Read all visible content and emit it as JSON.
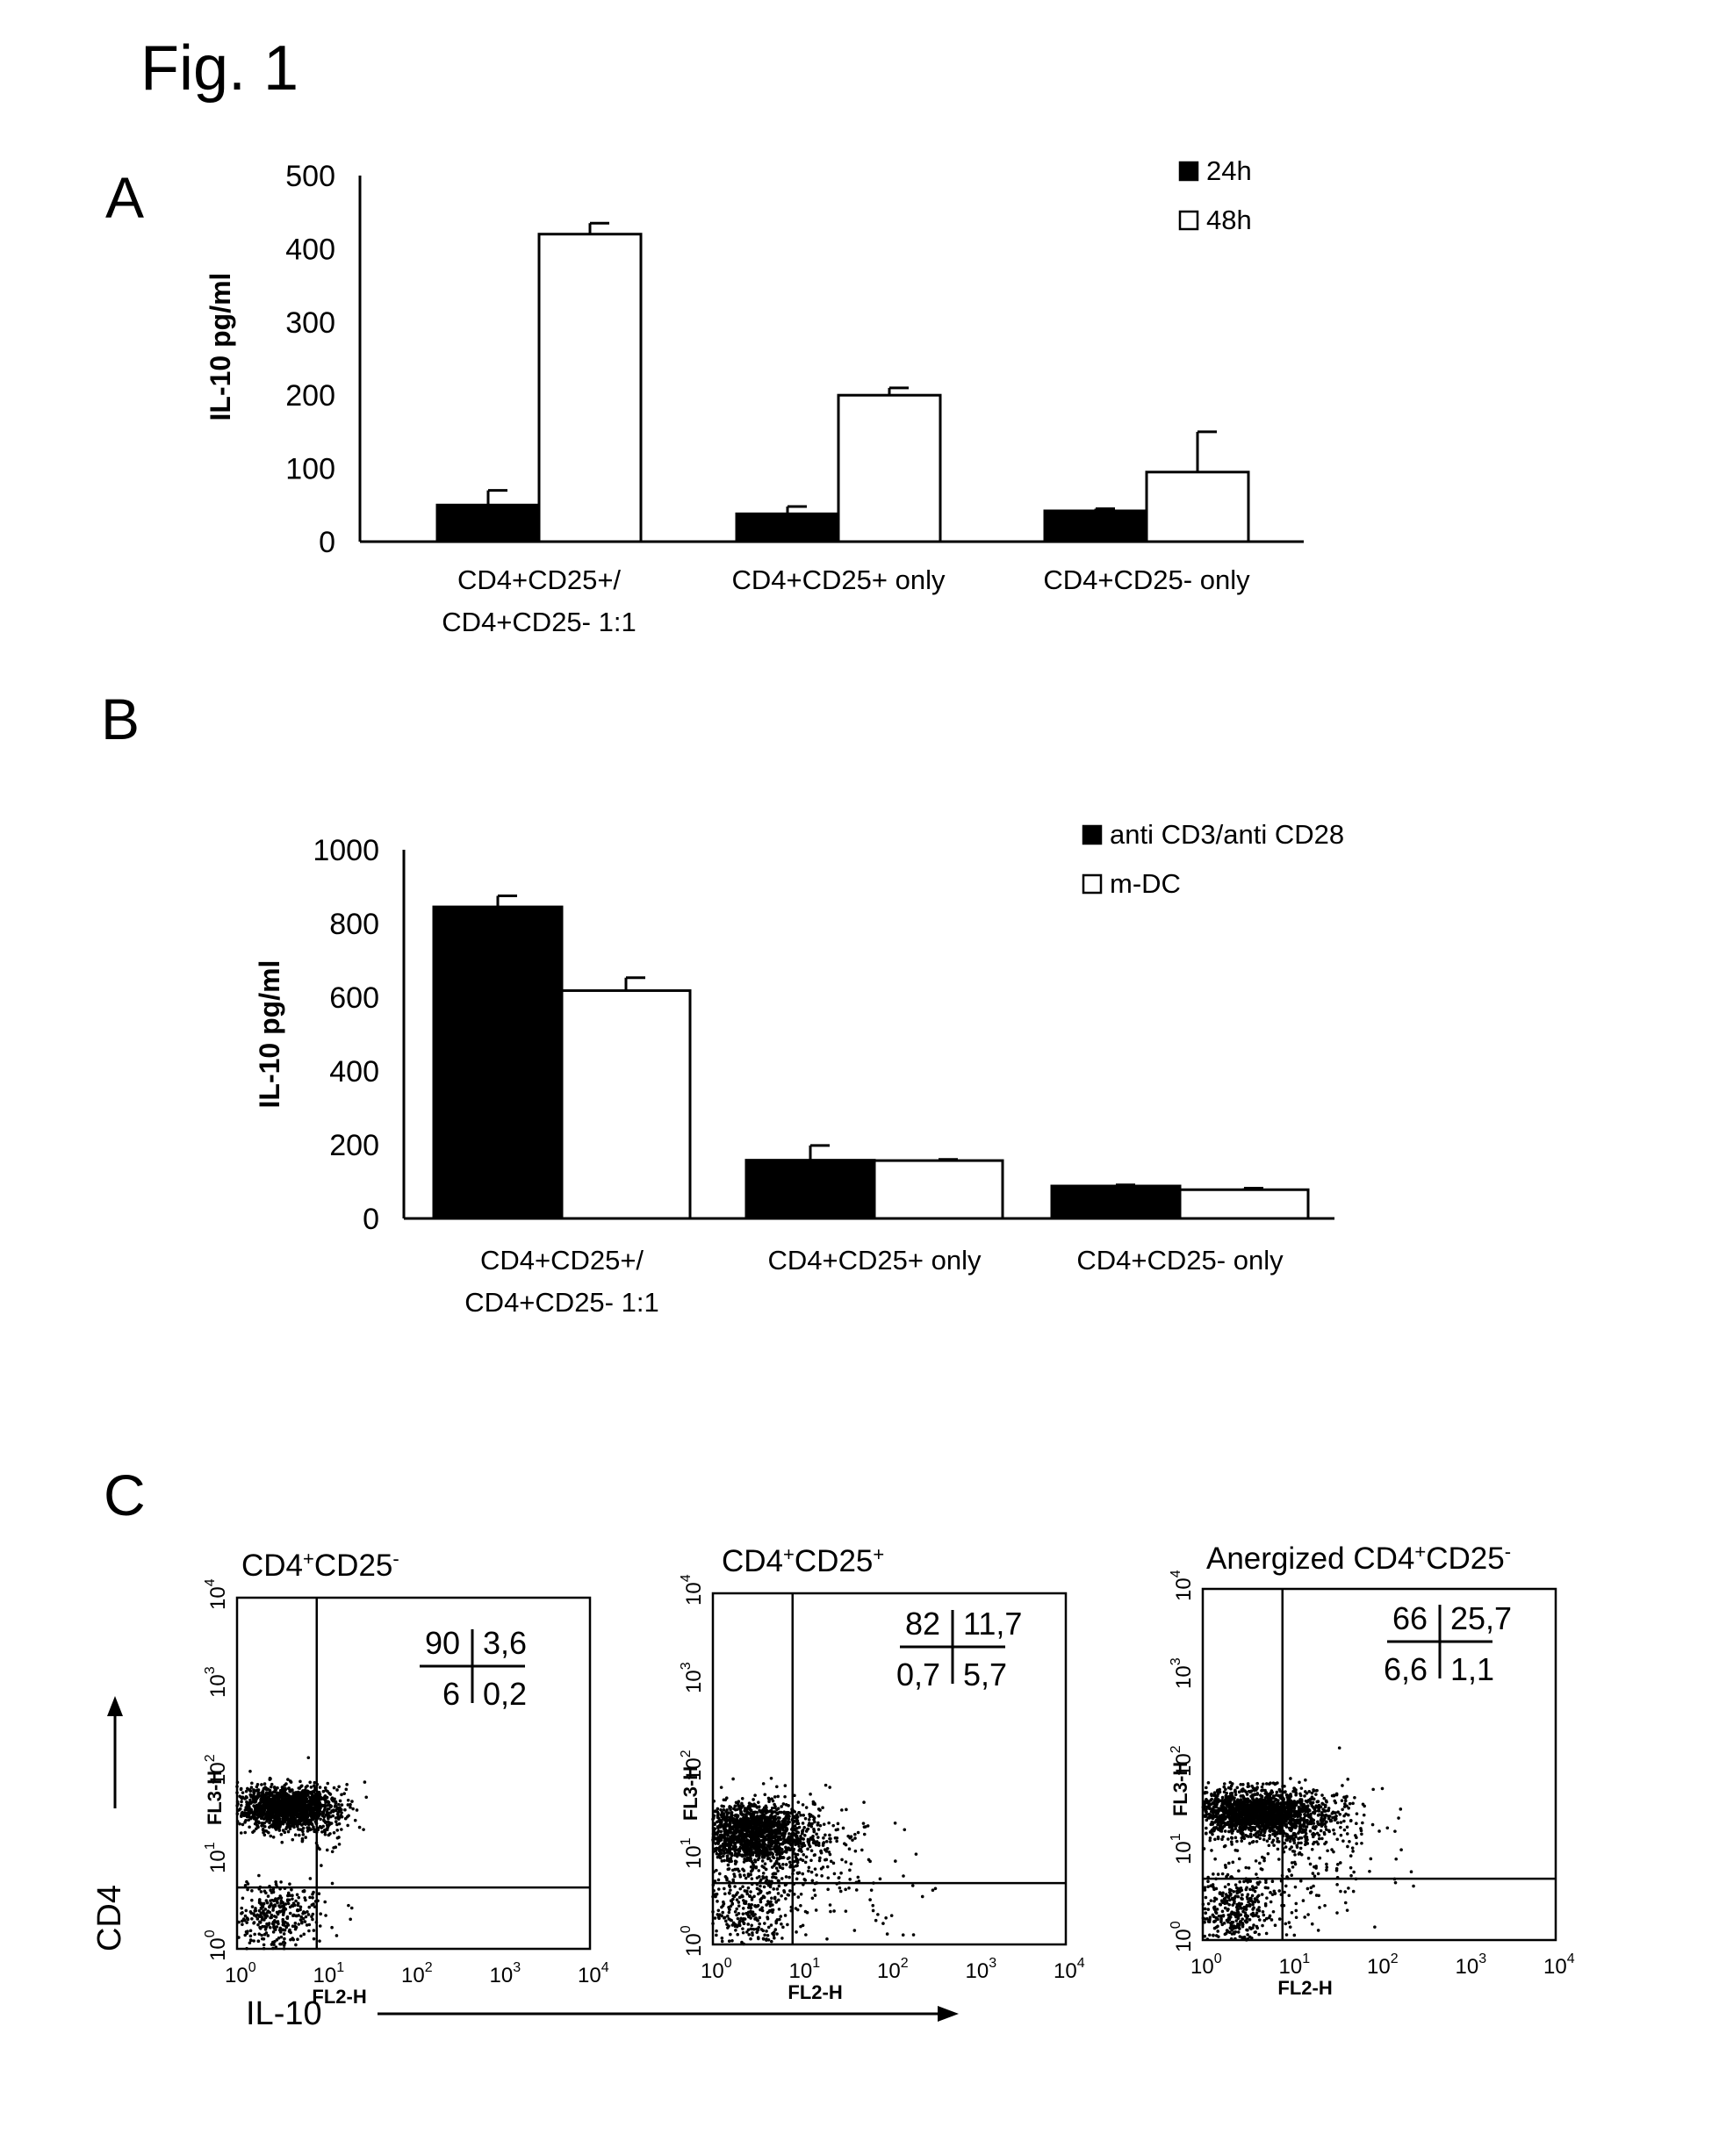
{
  "figure_title": "Fig. 1",
  "chart_data": [
    {
      "panel": "A",
      "type": "bar",
      "ylabel": "IL-10 pg/ml",
      "xlabel": "",
      "ylim": [
        0,
        500
      ],
      "yticks": [
        0,
        100,
        200,
        300,
        400,
        500
      ],
      "categories": [
        [
          "CD4+CD25+/",
          "CD4+CD25- 1:1"
        ],
        [
          "CD4+CD25+ only"
        ],
        [
          "CD4+CD25- only"
        ]
      ],
      "series": [
        {
          "name": "24h",
          "fill": "#000000",
          "values": [
            50,
            38,
            42
          ],
          "errors": [
            20,
            10,
            3
          ]
        },
        {
          "name": "48h",
          "fill": "#ffffff",
          "values": [
            420,
            200,
            95
          ],
          "errors": [
            15,
            10,
            55
          ]
        }
      ],
      "legend_position": "top-right"
    },
    {
      "panel": "B",
      "type": "bar",
      "ylabel": "IL-10 pg/ml",
      "xlabel": "",
      "ylim": [
        0,
        1000
      ],
      "yticks": [
        0,
        200,
        400,
        600,
        800,
        1000
      ],
      "categories": [
        [
          "CD4+CD25+/",
          "CD4+CD25- 1:1"
        ],
        [
          "CD4+CD25+ only"
        ],
        [
          "CD4+CD25- only"
        ]
      ],
      "series": [
        {
          "name": "anti CD3/anti CD28",
          "fill": "#000000",
          "values": [
            845,
            158,
            88
          ],
          "errors": [
            30,
            40,
            3
          ]
        },
        {
          "name": "m-DC",
          "fill": "#ffffff",
          "values": [
            618,
            157,
            78
          ],
          "errors": [
            35,
            3,
            4
          ]
        }
      ],
      "legend_position": "top-right"
    },
    {
      "panel": "C",
      "type": "scatter",
      "xlabel": "IL-10",
      "ylabel": "CD4",
      "x_scale": "log",
      "y_scale": "log",
      "xlim": [
        1,
        10000
      ],
      "ylim": [
        1,
        10000
      ],
      "plots": [
        {
          "title_base": "CD4",
          "title_sup1": "+",
          "title_mid": "CD25",
          "title_sup2": "-",
          "x_axis": "FL2-H",
          "y_axis": "FL3-H",
          "quadrants": {
            "upper_left": "90",
            "upper_right": "3,6",
            "lower_left": "6",
            "lower_right": "0,2"
          }
        },
        {
          "title_base": "CD4",
          "title_sup1": "+",
          "title_mid": "CD25",
          "title_sup2": "+",
          "x_axis": "FL2-H",
          "y_axis": "FL3-H",
          "quadrants": {
            "upper_left": "82",
            "upper_right": "11,7",
            "lower_left": "0,7",
            "lower_right": "5,7"
          }
        },
        {
          "title_base": "Anergized CD4",
          "title_sup1": "+",
          "title_mid": "CD25",
          "title_sup2": "-",
          "x_axis": "FL2-H",
          "y_axis": "FL3-H",
          "quadrants": {
            "upper_left": "66",
            "upper_right": "25,7",
            "lower_left": "6,6",
            "lower_right": "1,1"
          }
        }
      ]
    }
  ]
}
